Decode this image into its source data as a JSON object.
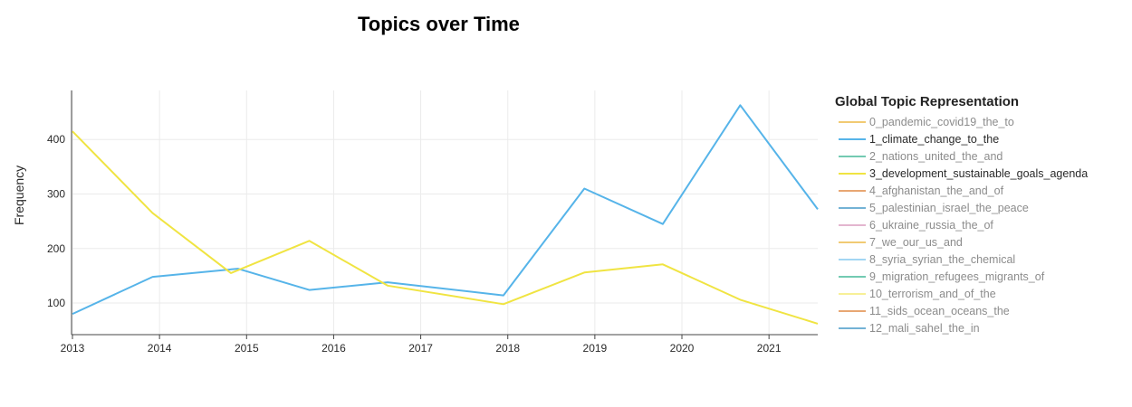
{
  "chart_data": {
    "type": "line",
    "title": "Topics over Time",
    "xlabel": "",
    "ylabel": "Frequency",
    "x_ticks": [
      "2013",
      "2014",
      "2015",
      "2016",
      "2017",
      "2018",
      "2019",
      "2020",
      "2021"
    ],
    "y_ticks": [
      "100",
      "200",
      "300",
      "400"
    ],
    "xlim": [
      2013.0,
      2021.56
    ],
    "ylim": [
      42,
      490
    ],
    "grid": true,
    "legend_title": "Global Topic Representation",
    "legend_position": "right",
    "legend": [
      {
        "name": "0_pandemic_covid19_the_to",
        "color": "#E69F00",
        "active": false
      },
      {
        "name": "1_climate_change_to_the",
        "color": "#56B4E9",
        "active": true
      },
      {
        "name": "2_nations_united_the_and",
        "color": "#009E73",
        "active": false
      },
      {
        "name": "3_development_sustainable_goals_agenda",
        "color": "#F0E442",
        "active": true
      },
      {
        "name": "4_afghanistan_the_and_of",
        "color": "#D55E00",
        "active": false
      },
      {
        "name": "5_palestinian_israel_the_peace",
        "color": "#0072B2",
        "active": false
      },
      {
        "name": "6_ukraine_russia_the_of",
        "color": "#CC79A7",
        "active": false
      },
      {
        "name": "7_we_our_us_and",
        "color": "#E69F00",
        "active": false
      },
      {
        "name": "8_syria_syrian_the_chemical",
        "color": "#56B4E9",
        "active": false
      },
      {
        "name": "9_migration_refugees_migrants_of",
        "color": "#009E73",
        "active": false
      },
      {
        "name": "10_terrorism_and_of_the",
        "color": "#F0E442",
        "active": false
      },
      {
        "name": "11_sids_ocean_oceans_the",
        "color": "#D55E00",
        "active": false
      },
      {
        "name": "12_mali_sahel_the_in",
        "color": "#0072B2",
        "active": false
      }
    ],
    "series": [
      {
        "name": "1_climate_change_to_the",
        "color": "#56B4E9",
        "x": [
          2013.0,
          2013.92,
          2014.9,
          2015.72,
          2016.62,
          2017.95,
          2018.88,
          2019.78,
          2020.67,
          2021.56
        ],
        "y": [
          80,
          148,
          163,
          124,
          138,
          114,
          310,
          245,
          463,
          272
        ]
      },
      {
        "name": "3_development_sustainable_goals_agenda",
        "color": "#F0E442",
        "x": [
          2013.0,
          2013.92,
          2014.82,
          2015.72,
          2016.62,
          2017.95,
          2018.88,
          2019.78,
          2020.67,
          2021.56
        ],
        "y": [
          415,
          265,
          155,
          214,
          132,
          98,
          156,
          171,
          106,
          62
        ]
      }
    ]
  }
}
